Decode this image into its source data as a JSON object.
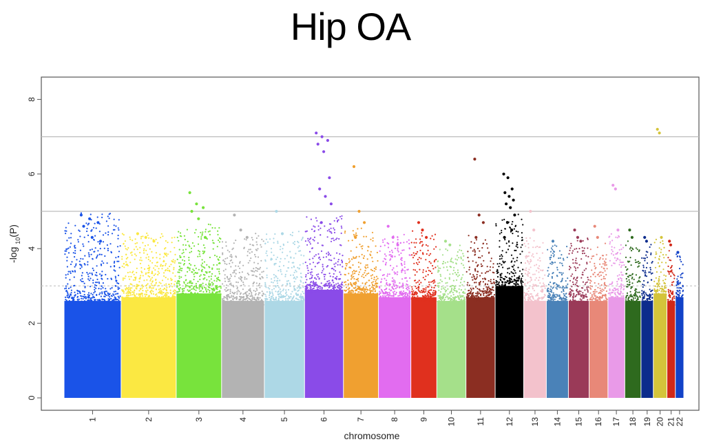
{
  "chart_data": {
    "type": "scatter",
    "title": "Hip OA",
    "xlabel": "chromosome",
    "ylabel": "-log10(P)",
    "ylim": [
      0,
      8.5
    ],
    "yticks": [
      0,
      2,
      4,
      6,
      8
    ],
    "reference_lines": [
      {
        "y": 7,
        "style": "solid"
      },
      {
        "y": 5,
        "style": "solid"
      },
      {
        "y": 3,
        "style": "dotted"
      }
    ],
    "chromosomes": [
      {
        "label": "1",
        "color": "#1a53e8",
        "share": 0.088,
        "bulk_max": 2.6,
        "spread_max": 4.9,
        "peaks": [
          4.9,
          4.8,
          4.7,
          4.6,
          4.3,
          4.2
        ]
      },
      {
        "label": "2",
        "color": "#fbe842",
        "share": 0.085,
        "bulk_max": 2.7,
        "spread_max": 4.4,
        "peaks": [
          4.4,
          4.3,
          4.2
        ]
      },
      {
        "label": "3",
        "color": "#78e33c",
        "share": 0.07,
        "bulk_max": 2.8,
        "spread_max": 4.6,
        "peaks": [
          5.5,
          5.2,
          5.1,
          5.0,
          4.8,
          4.3
        ]
      },
      {
        "label": "4",
        "color": "#b3b3b3",
        "share": 0.066,
        "bulk_max": 2.6,
        "spread_max": 4.3,
        "peaks": [
          4.9,
          4.5,
          4.3
        ]
      },
      {
        "label": "5",
        "color": "#add8e6",
        "share": 0.062,
        "bulk_max": 2.6,
        "spread_max": 4.4,
        "peaks": [
          5.0,
          4.4
        ]
      },
      {
        "label": "6",
        "color": "#8a4be8",
        "share": 0.06,
        "bulk_max": 2.9,
        "spread_max": 4.9,
        "peaks": [
          7.1,
          7.0,
          6.9,
          6.8,
          6.6,
          5.9,
          5.6,
          5.4,
          5.2,
          4.7
        ]
      },
      {
        "label": "7",
        "color": "#f0a030",
        "share": 0.054,
        "bulk_max": 2.8,
        "spread_max": 4.5,
        "peaks": [
          6.2,
          5.0,
          4.7,
          4.3
        ]
      },
      {
        "label": "8",
        "color": "#e26cf0",
        "share": 0.05,
        "bulk_max": 2.7,
        "spread_max": 4.3,
        "peaks": [
          4.6,
          4.3,
          4.1
        ]
      },
      {
        "label": "9",
        "color": "#e0301e",
        "share": 0.04,
        "bulk_max": 2.7,
        "spread_max": 4.4,
        "peaks": [
          4.7,
          4.5,
          4.3
        ]
      },
      {
        "label": "10",
        "color": "#a5e08a",
        "share": 0.045,
        "bulk_max": 2.6,
        "spread_max": 4.0,
        "peaks": [
          4.2,
          4.1
        ]
      },
      {
        "label": "11",
        "color": "#8b2e22",
        "share": 0.045,
        "bulk_max": 2.7,
        "spread_max": 4.3,
        "peaks": [
          6.4,
          4.9,
          4.7,
          4.3
        ]
      },
      {
        "label": "12",
        "color": "#000000",
        "share": 0.044,
        "bulk_max": 3.0,
        "spread_max": 4.8,
        "peaks": [
          6.0,
          5.9,
          5.6,
          5.5,
          5.4,
          5.3,
          5.2,
          5.1,
          4.9,
          4.7,
          4.5,
          4.3
        ]
      },
      {
        "label": "13",
        "color": "#f3c2cc",
        "share": 0.035,
        "bulk_max": 2.6,
        "spread_max": 4.3,
        "peaks": [
          5.0,
          4.5
        ]
      },
      {
        "label": "14",
        "color": "#4a82b8",
        "share": 0.034,
        "bulk_max": 2.6,
        "spread_max": 4.1,
        "peaks": [
          4.2
        ]
      },
      {
        "label": "15",
        "color": "#9a3a58",
        "share": 0.032,
        "bulk_max": 2.6,
        "spread_max": 4.2,
        "peaks": [
          4.5,
          4.3,
          4.2
        ]
      },
      {
        "label": "16",
        "color": "#e88878",
        "share": 0.029,
        "bulk_max": 2.6,
        "spread_max": 4.1,
        "peaks": [
          4.6,
          4.3
        ]
      },
      {
        "label": "17",
        "color": "#e99ae8",
        "share": 0.026,
        "bulk_max": 2.7,
        "spread_max": 4.4,
        "peaks": [
          5.7,
          5.6,
          4.5
        ]
      },
      {
        "label": "18",
        "color": "#2e6a1e",
        "share": 0.025,
        "bulk_max": 2.6,
        "spread_max": 4.1,
        "peaks": [
          4.5,
          4.3
        ]
      },
      {
        "label": "19",
        "color": "#0c2c8c",
        "share": 0.019,
        "bulk_max": 2.6,
        "spread_max": 4.0,
        "peaks": [
          4.3,
          4.2
        ]
      },
      {
        "label": "20",
        "color": "#d4c43a",
        "share": 0.021,
        "bulk_max": 2.8,
        "spread_max": 4.3,
        "peaks": [
          7.2,
          7.1,
          4.3
        ]
      },
      {
        "label": "21",
        "color": "#d12818",
        "share": 0.013,
        "bulk_max": 2.6,
        "spread_max": 4.0,
        "peaks": [
          4.2,
          4.1
        ]
      },
      {
        "label": "22",
        "color": "#1242c8",
        "share": 0.013,
        "bulk_max": 2.7,
        "spread_max": 3.9,
        "peaks": [
          3.9
        ]
      }
    ]
  }
}
